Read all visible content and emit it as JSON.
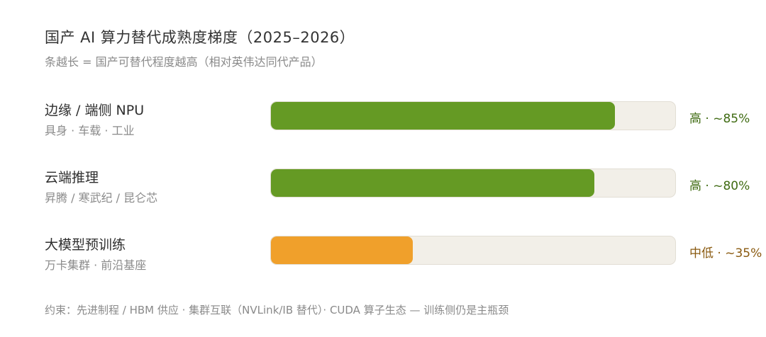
{
  "chart_data": {
    "type": "bar",
    "orientation": "horizontal",
    "title": "国产 AI 算力替代成熟度梯度（2025–2026）",
    "subtitle": "条越长 = 国产可替代程度越高（相对英伟达同代产品）",
    "categories": [
      "边缘 / 端侧 NPU",
      "云端推理",
      "大模型预训练"
    ],
    "sublabels": [
      "具身 · 车载 · 工业",
      "昇腾 / 寒武纪 / 昆仑芯",
      "万卡集群 · 前沿基座"
    ],
    "values": [
      85,
      80,
      35
    ],
    "value_labels": [
      "高 · ~85%",
      "高 · ~80%",
      "中低 · ~35%"
    ],
    "colors": [
      "#659a24",
      "#659a24",
      "#f0a02b"
    ],
    "label_colors": [
      "#3f6b12",
      "#3f6b12",
      "#8a5a10"
    ],
    "xlim": [
      0,
      100
    ],
    "grid": false,
    "footnote": "约束：先进制程 / HBM 供应 · 集群互联（NVLink/IB 替代）· CUDA 算子生态 — 训练侧仍是主瓶颈"
  }
}
